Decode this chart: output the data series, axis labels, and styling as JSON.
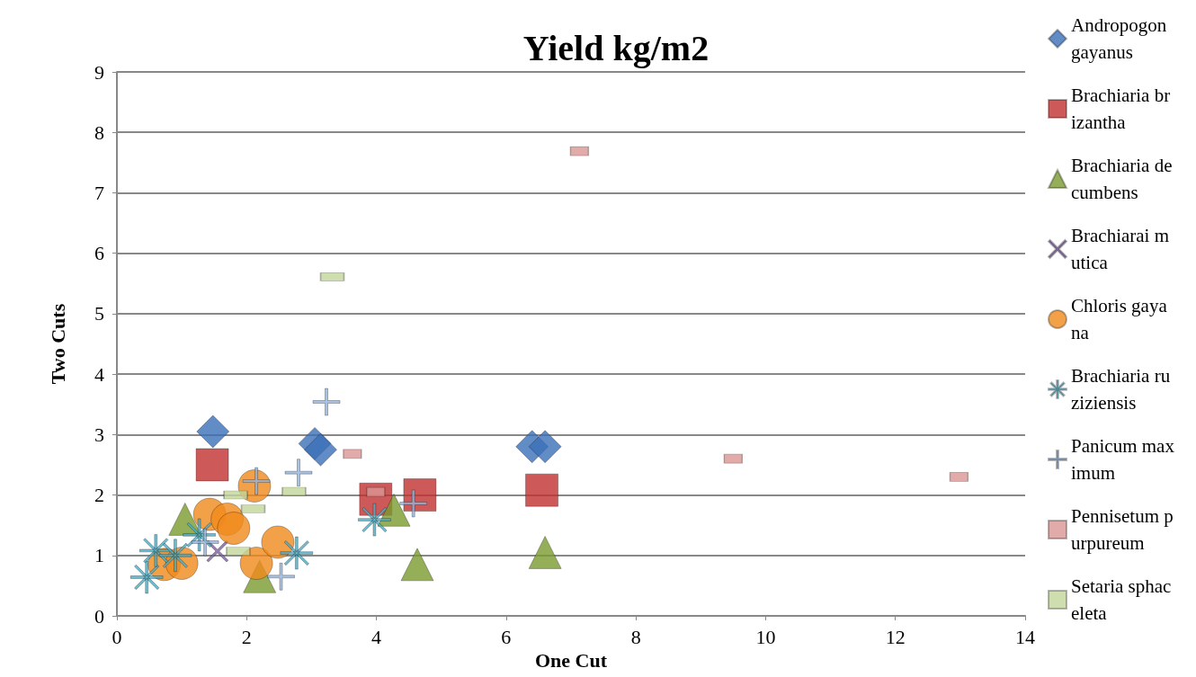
{
  "chart_data": {
    "type": "scatter",
    "title": "Yield kg/m2",
    "xlabel": "One Cut",
    "ylabel": "Two Cuts",
    "xlim": [
      0,
      14
    ],
    "xticks": [
      0,
      2,
      4,
      6,
      8,
      10,
      12,
      14
    ],
    "ylim": [
      0,
      9
    ],
    "yticks": [
      0,
      1,
      2,
      3,
      4,
      5,
      6,
      7,
      8,
      9
    ],
    "grid": "y",
    "legend": "right",
    "series": [
      {
        "name": "Andropogon gayanus",
        "color": "#3b6fb6",
        "marker": "diamond",
        "x": [
          1.48,
          3.05,
          3.14,
          6.4,
          6.6
        ],
        "values": [
          3.05,
          2.85,
          2.75,
          2.8,
          2.8
        ]
      },
      {
        "name": "Brachiaria brizantha",
        "color": "#c0302e",
        "marker": "square",
        "x": [
          1.47,
          3.99,
          4.67,
          6.55
        ],
        "values": [
          2.5,
          1.93,
          2.0,
          2.08
        ]
      },
      {
        "name": "Brachiaria decumbens",
        "color": "#7a9a2e",
        "marker": "triangle",
        "x": [
          1.05,
          2.2,
          4.27,
          4.63,
          6.6
        ],
        "values": [
          1.6,
          0.65,
          1.75,
          0.85,
          1.05
        ]
      },
      {
        "name": "Brachiarai mutica",
        "color": "#7e5fa0",
        "marker": "cross",
        "x": [
          1.55
        ],
        "values": [
          1.07
        ]
      },
      {
        "name": "Chloris gayana",
        "color": "#f08a1c",
        "marker": "circle",
        "x": [
          2.12,
          1.43,
          1.7,
          1.8,
          0.73,
          1.0,
          2.15,
          2.48
        ],
        "values": [
          2.15,
          1.68,
          1.6,
          1.45,
          0.85,
          0.87,
          0.87,
          1.22
        ]
      },
      {
        "name": "Brachiaria ruziziensis",
        "color": "#4bacc6",
        "x": [
          0.46,
          0.6,
          0.9,
          1.27,
          2.77,
          3.97
        ],
        "values": [
          0.64,
          1.08,
          1.0,
          1.34,
          1.04,
          1.59
        ]
      },
      {
        "name": "Panicum maximum",
        "color": "#95b3d7",
        "x": [
          3.23,
          2.15,
          2.8,
          1.36,
          2.53,
          4.57
        ],
        "values": [
          3.54,
          2.23,
          2.37,
          1.22,
          0.65,
          1.86
        ]
      },
      {
        "name": "Pennisetum purpureum",
        "color": "#d99694",
        "x": [
          7.13,
          3.63,
          3.99,
          9.5,
          12.98
        ],
        "values": [
          7.69,
          2.68,
          2.05,
          2.6,
          2.3
        ]
      },
      {
        "name": "Setaria sphaceleta",
        "color": "#c3d69b",
        "x": [
          3.32,
          1.83,
          2.1,
          2.73,
          1.87
        ],
        "values": [
          5.61,
          2.0,
          1.77,
          2.06,
          1.07
        ]
      }
    ]
  }
}
